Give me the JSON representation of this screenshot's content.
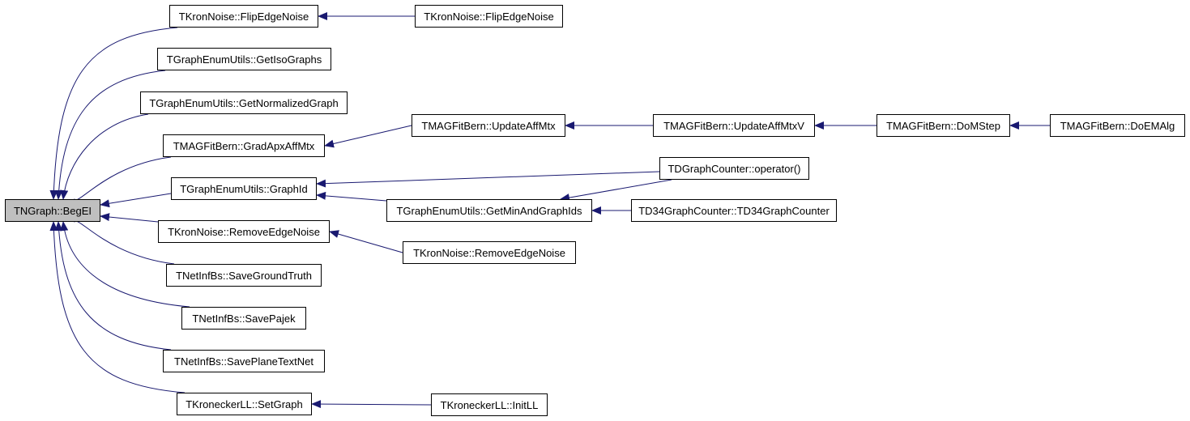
{
  "nodes": [
    {
      "id": "root",
      "label": "TNGraph::BegEI",
      "highlight": true
    },
    {
      "id": "flip1",
      "label": "TKronNoise::FlipEdgeNoise"
    },
    {
      "id": "iso",
      "label": "TGraphEnumUtils::GetIsoGraphs"
    },
    {
      "id": "norm",
      "label": "TGraphEnumUtils::GetNormalizedGraph"
    },
    {
      "id": "grad",
      "label": "TMAGFitBern::GradApxAffMtx"
    },
    {
      "id": "gid",
      "label": "TGraphEnumUtils::GraphId"
    },
    {
      "id": "rem1",
      "label": "TKronNoise::RemoveEdgeNoise"
    },
    {
      "id": "sgt",
      "label": "TNetInfBs::SaveGroundTruth"
    },
    {
      "id": "spj",
      "label": "TNetInfBs::SavePajek"
    },
    {
      "id": "sptn",
      "label": "TNetInfBs::SavePlaneTextNet"
    },
    {
      "id": "setg",
      "label": "TKroneckerLL::SetGraph"
    },
    {
      "id": "flip2",
      "label": "TKronNoise::FlipEdgeNoise"
    },
    {
      "id": "uam",
      "label": "TMAGFitBern::UpdateAffMtx"
    },
    {
      "id": "uamv",
      "label": "TMAGFitBern::UpdateAffMtxV"
    },
    {
      "id": "dms",
      "label": "TMAGFitBern::DoMStep"
    },
    {
      "id": "dem",
      "label": "TMAGFitBern::DoEMAlg"
    },
    {
      "id": "op",
      "label": "TDGraphCounter::operator()"
    },
    {
      "id": "gmg",
      "label": "TGraphEnumUtils::GetMinAndGraphIds"
    },
    {
      "id": "td34",
      "label": "TD34GraphCounter::TD34GraphCounter"
    },
    {
      "id": "rem2",
      "label": "TKronNoise::RemoveEdgeNoise"
    },
    {
      "id": "init",
      "label": "TKroneckerLL::InitLL"
    }
  ],
  "edges": [
    [
      "flip1",
      "root"
    ],
    [
      "iso",
      "root"
    ],
    [
      "norm",
      "root"
    ],
    [
      "grad",
      "root"
    ],
    [
      "gid",
      "root"
    ],
    [
      "rem1",
      "root"
    ],
    [
      "sgt",
      "root"
    ],
    [
      "spj",
      "root"
    ],
    [
      "sptn",
      "root"
    ],
    [
      "setg",
      "root"
    ],
    [
      "flip2",
      "flip1"
    ],
    [
      "uam",
      "grad"
    ],
    [
      "uamv",
      "uam"
    ],
    [
      "dms",
      "uamv"
    ],
    [
      "dem",
      "dms"
    ],
    [
      "op",
      "gid"
    ],
    [
      "gmg",
      "gid"
    ],
    [
      "op",
      "gmg"
    ],
    [
      "td34",
      "gmg"
    ],
    [
      "rem2",
      "rem1"
    ],
    [
      "init",
      "setg"
    ]
  ],
  "colors": {
    "edge": "#191970",
    "root_fill": "#bfbfbf",
    "node_border": "#000000"
  }
}
